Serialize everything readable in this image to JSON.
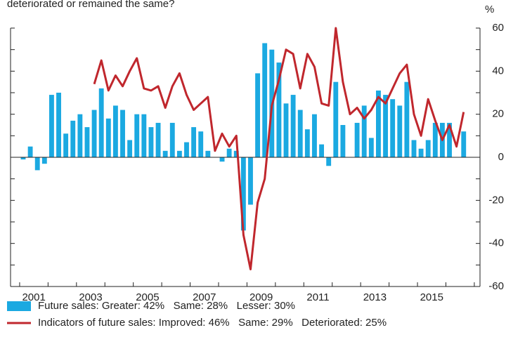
{
  "chart_data": {
    "type": "bar-line",
    "subtitle": "deteriorated or remained the same?",
    "y_unit": "%",
    "x": [
      2001,
      2001.25,
      2001.5,
      2001.75,
      2002,
      2002.25,
      2002.5,
      2002.75,
      2003,
      2003.25,
      2003.5,
      2003.75,
      2004,
      2004.25,
      2004.5,
      2004.75,
      2005,
      2005.25,
      2005.5,
      2005.75,
      2006,
      2006.25,
      2006.5,
      2006.75,
      2007,
      2007.25,
      2007.5,
      2007.75,
      2008,
      2008.25,
      2008.5,
      2008.75,
      2009,
      2009.25,
      2009.5,
      2009.75,
      2010,
      2010.25,
      2010.5,
      2010.75,
      2011,
      2011.25,
      2011.5,
      2011.75,
      2012,
      2012.25,
      2012.5,
      2012.75,
      2013,
      2013.25,
      2013.5,
      2013.75,
      2014,
      2014.25,
      2014.5,
      2014.75,
      2015,
      2015.25,
      2015.5,
      2015.75,
      2016,
      2016.25,
      2016.5
    ],
    "series": [
      {
        "name": "Future sales: Greater: 42%   Same: 28%   Lesser: 30%",
        "kind": "bar",
        "color": "#1ba9e1",
        "values": [
          -1,
          5,
          -6,
          -3,
          29,
          30,
          11,
          17,
          20,
          14,
          22,
          32,
          18,
          24,
          22,
          8,
          20,
          20,
          14,
          16,
          3,
          16,
          3,
          7,
          14,
          12,
          3,
          0,
          -2,
          4,
          3,
          -34,
          -22,
          39,
          53,
          50,
          44,
          25,
          29,
          22,
          13,
          20,
          6,
          -4,
          35,
          15,
          0,
          16,
          24,
          9,
          31,
          29,
          27,
          24,
          35,
          8,
          4,
          8,
          16,
          16,
          16,
          0,
          12
        ]
      },
      {
        "name": "Indicators of future sales: Improved: 46%   Same: 29%   Deteriorated: 25%",
        "kind": "line",
        "color": "#c0272d",
        "values": [
          null,
          null,
          null,
          null,
          null,
          null,
          null,
          null,
          null,
          null,
          34,
          45,
          31,
          38,
          33,
          40,
          46,
          32,
          31,
          33,
          23,
          33,
          39,
          29,
          22,
          25,
          28,
          3,
          11,
          5,
          10,
          -36,
          -52,
          -21,
          -10,
          24,
          36,
          50,
          48,
          32,
          48,
          42,
          25,
          24,
          60,
          35,
          20,
          23,
          18,
          22,
          28,
          25,
          32,
          39,
          43,
          20,
          10,
          27,
          17,
          8,
          15,
          5,
          21
        ]
      }
    ],
    "xlim": [
      2000.68,
      2017.2
    ],
    "xticks": [
      2001,
      2003,
      2005,
      2007,
      2009,
      2011,
      2013,
      2015
    ],
    "xminorticks": [
      2001,
      2002,
      2003,
      2004,
      2005,
      2006,
      2007,
      2008,
      2009,
      2010,
      2011,
      2012,
      2013,
      2014,
      2015,
      2016,
      2017
    ],
    "ylim": [
      -60,
      60
    ],
    "yticks": [
      60,
      40,
      20,
      0,
      -20,
      -40,
      -60
    ],
    "yminorticks": [
      60,
      50,
      40,
      30,
      20,
      10,
      0,
      -10,
      -20,
      -30,
      -40,
      -50,
      -60
    ],
    "bar_width_years": 0.17
  }
}
